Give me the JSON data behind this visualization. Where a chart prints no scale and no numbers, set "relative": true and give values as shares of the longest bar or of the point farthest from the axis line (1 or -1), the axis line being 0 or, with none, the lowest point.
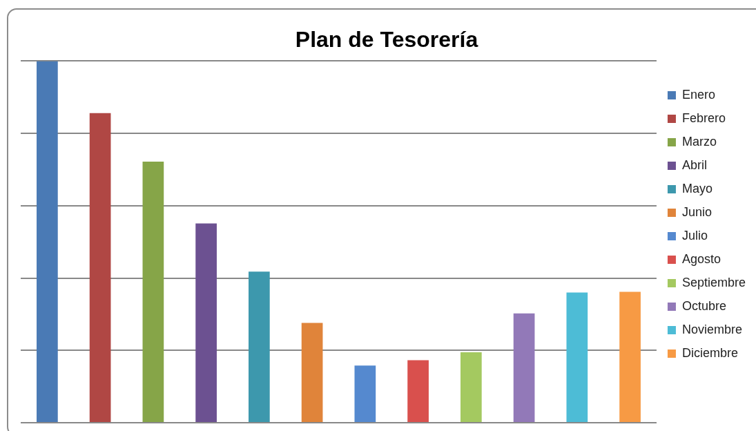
{
  "chart_data": {
    "type": "bar",
    "title": "Plan de Tesorería",
    "relative": true,
    "grid": "y",
    "legend": "right",
    "stacked": true,
    "categories": [
      null,
      null,
      null,
      null,
      null,
      null,
      null,
      null,
      null,
      null,
      null,
      null
    ],
    "series": [
      {
        "name": "Enero",
        "color": "#4a7ab5",
        "values": [
          1,
          null,
          null,
          null,
          null,
          null,
          null,
          null,
          null,
          null,
          null,
          null
        ]
      },
      {
        "name": "Febrero",
        "color": "#b04744",
        "values": [
          null,
          0.856,
          null,
          null,
          null,
          null,
          null,
          null,
          null,
          null,
          null,
          null
        ]
      },
      {
        "name": "Marzo",
        "color": "#86a548",
        "values": [
          null,
          null,
          0.722,
          null,
          null,
          null,
          null,
          null,
          null,
          null,
          null,
          null
        ]
      },
      {
        "name": "Abril",
        "color": "#6c5191",
        "values": [
          null,
          null,
          null,
          0.551,
          null,
          null,
          null,
          null,
          null,
          null,
          null,
          null
        ]
      },
      {
        "name": "Mayo",
        "color": "#3d98ad",
        "values": [
          null,
          null,
          null,
          null,
          0.418,
          null,
          null,
          null,
          null,
          null,
          null,
          null
        ]
      },
      {
        "name": "Junio",
        "color": "#e0843a",
        "values": [
          null,
          null,
          null,
          null,
          null,
          0.276,
          null,
          null,
          null,
          null,
          null,
          null
        ]
      },
      {
        "name": "Julio",
        "color": "#5589cf",
        "values": [
          null,
          null,
          null,
          null,
          null,
          null,
          0.158,
          null,
          null,
          null,
          null,
          null
        ]
      },
      {
        "name": "Agosto",
        "color": "#d9504d",
        "values": [
          null,
          null,
          null,
          null,
          null,
          null,
          null,
          0.173,
          null,
          null,
          null,
          null
        ]
      },
      {
        "name": "Septiembre",
        "color": "#a4c960",
        "values": [
          null,
          null,
          null,
          null,
          null,
          null,
          null,
          null,
          0.195,
          null,
          null,
          null
        ]
      },
      {
        "name": "Octubre",
        "color": "#9279b8",
        "values": [
          null,
          null,
          null,
          null,
          null,
          null,
          null,
          null,
          null,
          0.302,
          null,
          null
        ]
      },
      {
        "name": "Noviembre",
        "color": "#4dbcd6",
        "values": [
          null,
          null,
          null,
          null,
          null,
          null,
          null,
          null,
          null,
          null,
          0.36,
          null
        ]
      },
      {
        "name": "Diciembre",
        "color": "#f79a44",
        "values": [
          null,
          null,
          null,
          null,
          null,
          null,
          null,
          null,
          null,
          null,
          null,
          0.362
        ]
      }
    ]
  }
}
